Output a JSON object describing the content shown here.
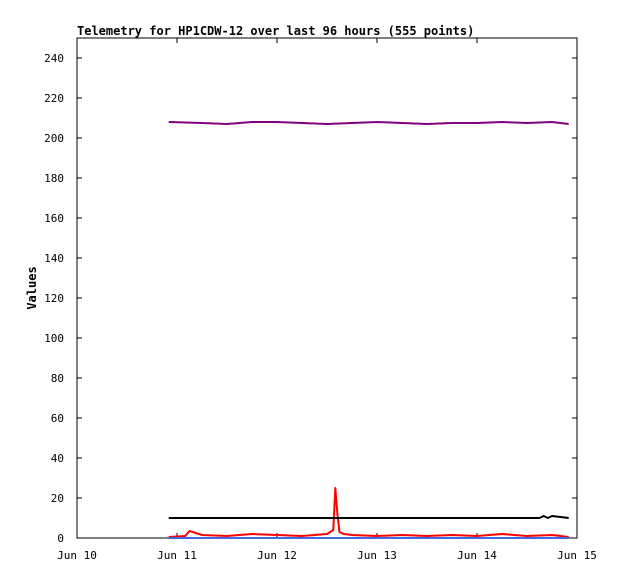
{
  "chart_data": {
    "type": "line",
    "title": "Telemetry for HP1CDW-12 over last 96 hours (555 points)",
    "xlabel": "",
    "ylabel": "Values",
    "x_tick_labels": [
      "Jun 10",
      "Jun 11",
      "Jun 12",
      "Jun 13",
      "Jun 14",
      "Jun 15"
    ],
    "xlim": [
      "Jun 10",
      "Jun 15"
    ],
    "ylim": [
      0,
      250
    ],
    "y_ticks": [
      0,
      20,
      40,
      60,
      80,
      100,
      120,
      140,
      160,
      180,
      200,
      220,
      240
    ],
    "grid": false,
    "legend": false,
    "series": [
      {
        "color": "#800080",
        "x": [
          "Jun 10 22:00",
          "Jun 11 06:00",
          "Jun 11 12:00",
          "Jun 11 18:00",
          "Jun 12 00:00",
          "Jun 12 06:00",
          "Jun 12 12:00",
          "Jun 12 18:00",
          "Jun 13 00:00",
          "Jun 13 06:00",
          "Jun 13 12:00",
          "Jun 13 18:00",
          "Jun 14 00:00",
          "Jun 14 06:00",
          "Jun 14 12:00",
          "Jun 14 18:00",
          "Jun 14 22:00"
        ],
        "y": [
          208,
          207.5,
          207,
          208,
          208,
          207.5,
          207,
          207.5,
          208,
          207.5,
          207,
          207.5,
          207.5,
          208,
          207.5,
          208,
          207
        ]
      },
      {
        "color": "#ff0000",
        "x": [
          "Jun 10 22:00",
          "Jun 11 02:00",
          "Jun 11 03:00",
          "Jun 11 06:00",
          "Jun 11 12:00",
          "Jun 11 18:00",
          "Jun 12 00:00",
          "Jun 12 06:00",
          "Jun 12 12:00",
          "Jun 12 13:30",
          "Jun 12 14:00",
          "Jun 12 14:30",
          "Jun 12 15:00",
          "Jun 12 16:00",
          "Jun 12 18:00",
          "Jun 13 00:00",
          "Jun 13 06:00",
          "Jun 13 12:00",
          "Jun 13 18:00",
          "Jun 14 00:00",
          "Jun 14 06:00",
          "Jun 14 12:00",
          "Jun 14 18:00",
          "Jun 14 22:00"
        ],
        "y": [
          0.5,
          1,
          3.5,
          1.5,
          1,
          2,
          1.5,
          1,
          2,
          4,
          25,
          12,
          3,
          2,
          1.5,
          1,
          1.5,
          1,
          1.5,
          1,
          2,
          1,
          1.5,
          0.5
        ]
      },
      {
        "color": "#000000",
        "x": [
          "Jun 10 22:00",
          "Jun 14 15:00",
          "Jun 14 16:00",
          "Jun 14 17:00",
          "Jun 14 18:00",
          "Jun 14 22:00"
        ],
        "y": [
          10,
          10,
          11,
          10,
          11,
          10
        ]
      },
      {
        "color": "#4169e1",
        "x": [
          "Jun 10 22:00",
          "Jun 14 22:00"
        ],
        "y": [
          0,
          0
        ]
      }
    ]
  }
}
